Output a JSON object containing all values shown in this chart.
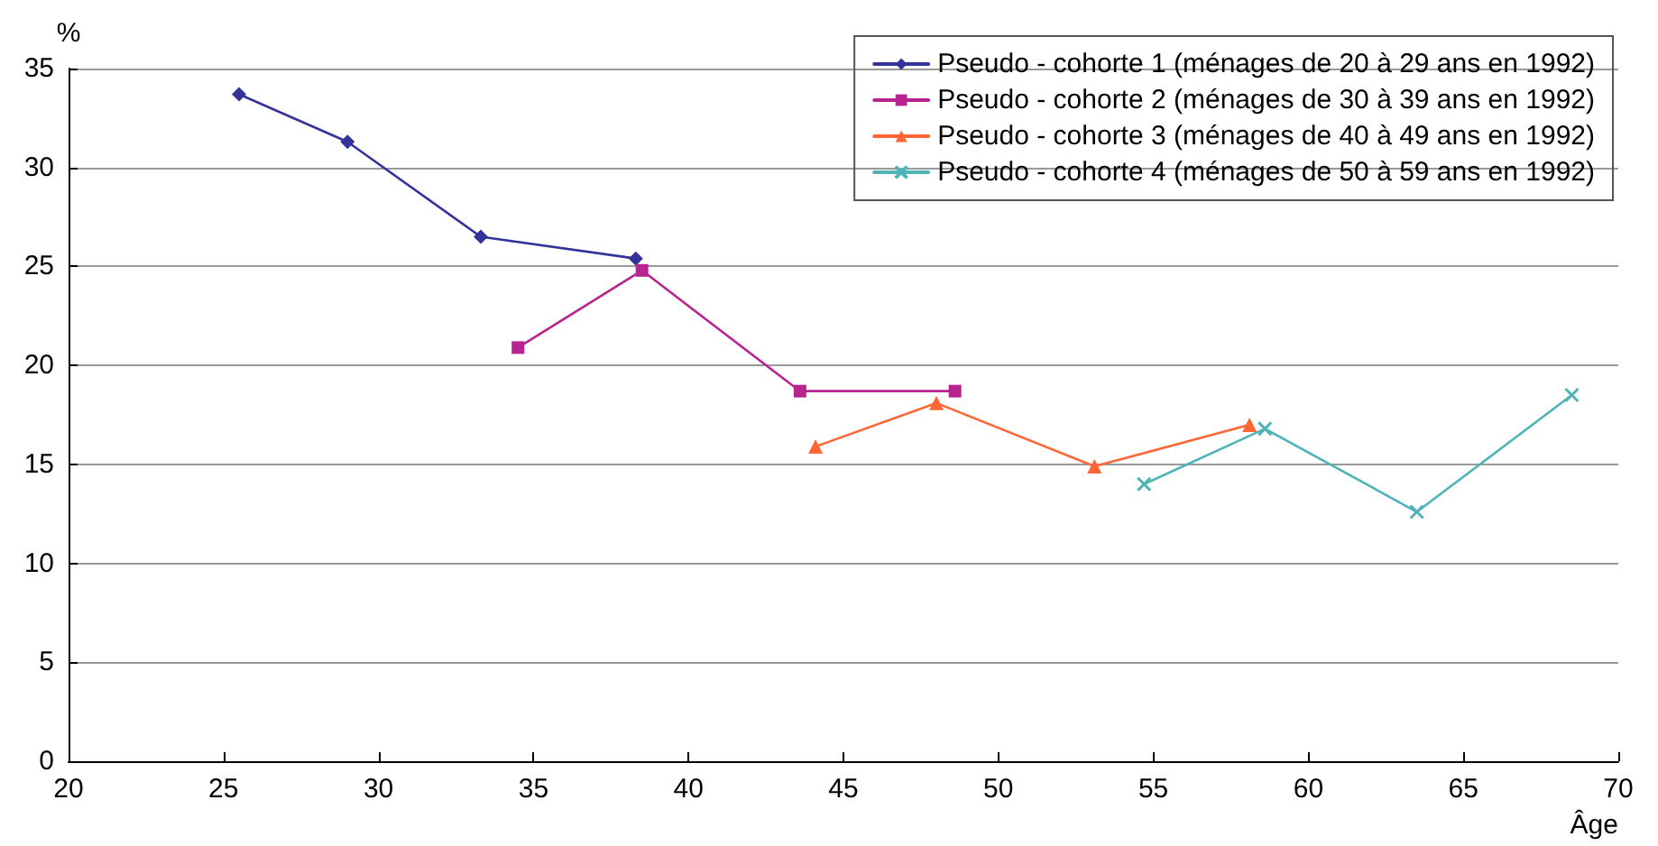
{
  "chart_data": {
    "type": "line",
    "xlabel": "Âge",
    "ylabel": "%",
    "xlim": [
      20,
      70
    ],
    "xticks": [
      20,
      25,
      30,
      35,
      40,
      45,
      50,
      55,
      60,
      65,
      70
    ],
    "ylim": [
      0,
      35
    ],
    "yticks": [
      0,
      5,
      10,
      15,
      20,
      25,
      30,
      35
    ],
    "grid": "y",
    "legend": "top right",
    "line_style": "solid",
    "series": [
      {
        "name": "Pseudo - cohorte 1 (ménages de 20 à 29 ans en 1992)",
        "color": "#333399",
        "marker": "diamond",
        "x": [
          25.5,
          29.0,
          33.3,
          38.3
        ],
        "values": [
          33.7,
          31.3,
          26.5,
          25.4
        ]
      },
      {
        "name": "Pseudo - cohorte 2 (ménages de 30 à 39 ans en 1992)",
        "color": "#b8248f",
        "marker": "square",
        "x": [
          34.5,
          38.5,
          43.6,
          48.6
        ],
        "values": [
          20.9,
          24.8,
          18.7,
          18.7
        ]
      },
      {
        "name": "Pseudo - cohorte 3 (ménages de 40 à 49 ans en 1992)",
        "color": "#ff6633",
        "marker": "triangle",
        "x": [
          44.1,
          48.0,
          53.1,
          58.1
        ],
        "values": [
          15.9,
          18.1,
          14.9,
          17.0
        ]
      },
      {
        "name": "Pseudo - cohorte 4 (ménages de 50 à 59 ans en 1992)",
        "color": "#4fb3b8",
        "marker": "cross",
        "x": [
          54.7,
          58.6,
          63.5,
          68.5
        ],
        "values": [
          14.0,
          16.8,
          12.6,
          18.5
        ]
      }
    ]
  }
}
